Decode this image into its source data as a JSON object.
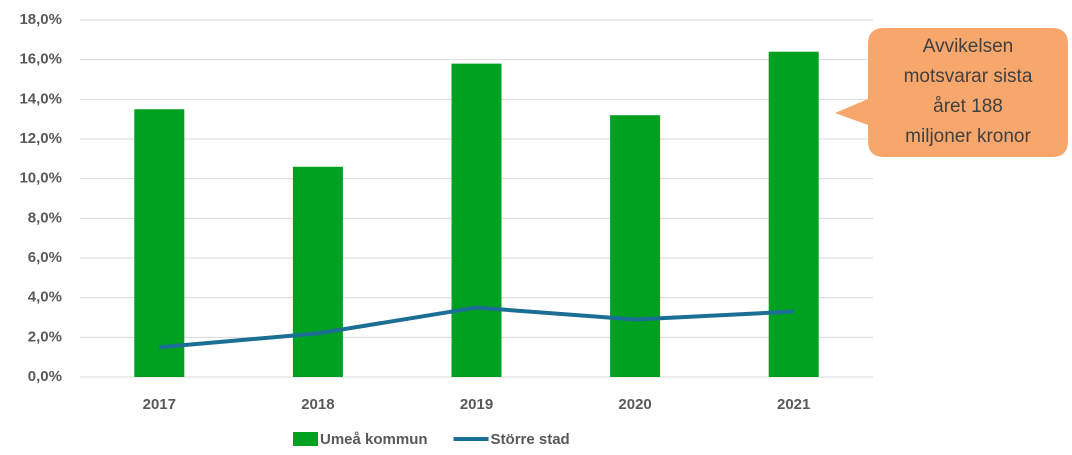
{
  "chart_data": {
    "type": "bar",
    "categories": [
      "2017",
      "2018",
      "2019",
      "2020",
      "2021"
    ],
    "series": [
      {
        "name": "Umeå kommun",
        "color": "#00a020",
        "values": [
          13.5,
          10.6,
          15.8,
          13.2,
          16.4
        ]
      },
      {
        "name": "Större stad",
        "type": "line",
        "color": "#1b6f94",
        "values": [
          1.5,
          2.2,
          3.5,
          2.9,
          3.3
        ]
      }
    ],
    "ylim": [
      0,
      18
    ],
    "yticks": [
      {
        "value": 0,
        "label": "0,0%"
      },
      {
        "value": 2,
        "label": "2,0%"
      },
      {
        "value": 4,
        "label": "4,0%"
      },
      {
        "value": 6,
        "label": "6,0%"
      },
      {
        "value": 8,
        "label": "8,0%"
      },
      {
        "value": 10,
        "label": "10,0%"
      },
      {
        "value": 12,
        "label": "12,0%"
      },
      {
        "value": 14,
        "label": "14,0%"
      },
      {
        "value": 16,
        "label": "16,0%"
      },
      {
        "value": 18,
        "label": "18,0%"
      }
    ],
    "grid": true,
    "legend": "bottom",
    "annotation": {
      "lines": [
        "Avvikelsen",
        "motsvarar sista",
        "året 188",
        "miljoner kronor"
      ],
      "color": "#f8a76c"
    }
  }
}
